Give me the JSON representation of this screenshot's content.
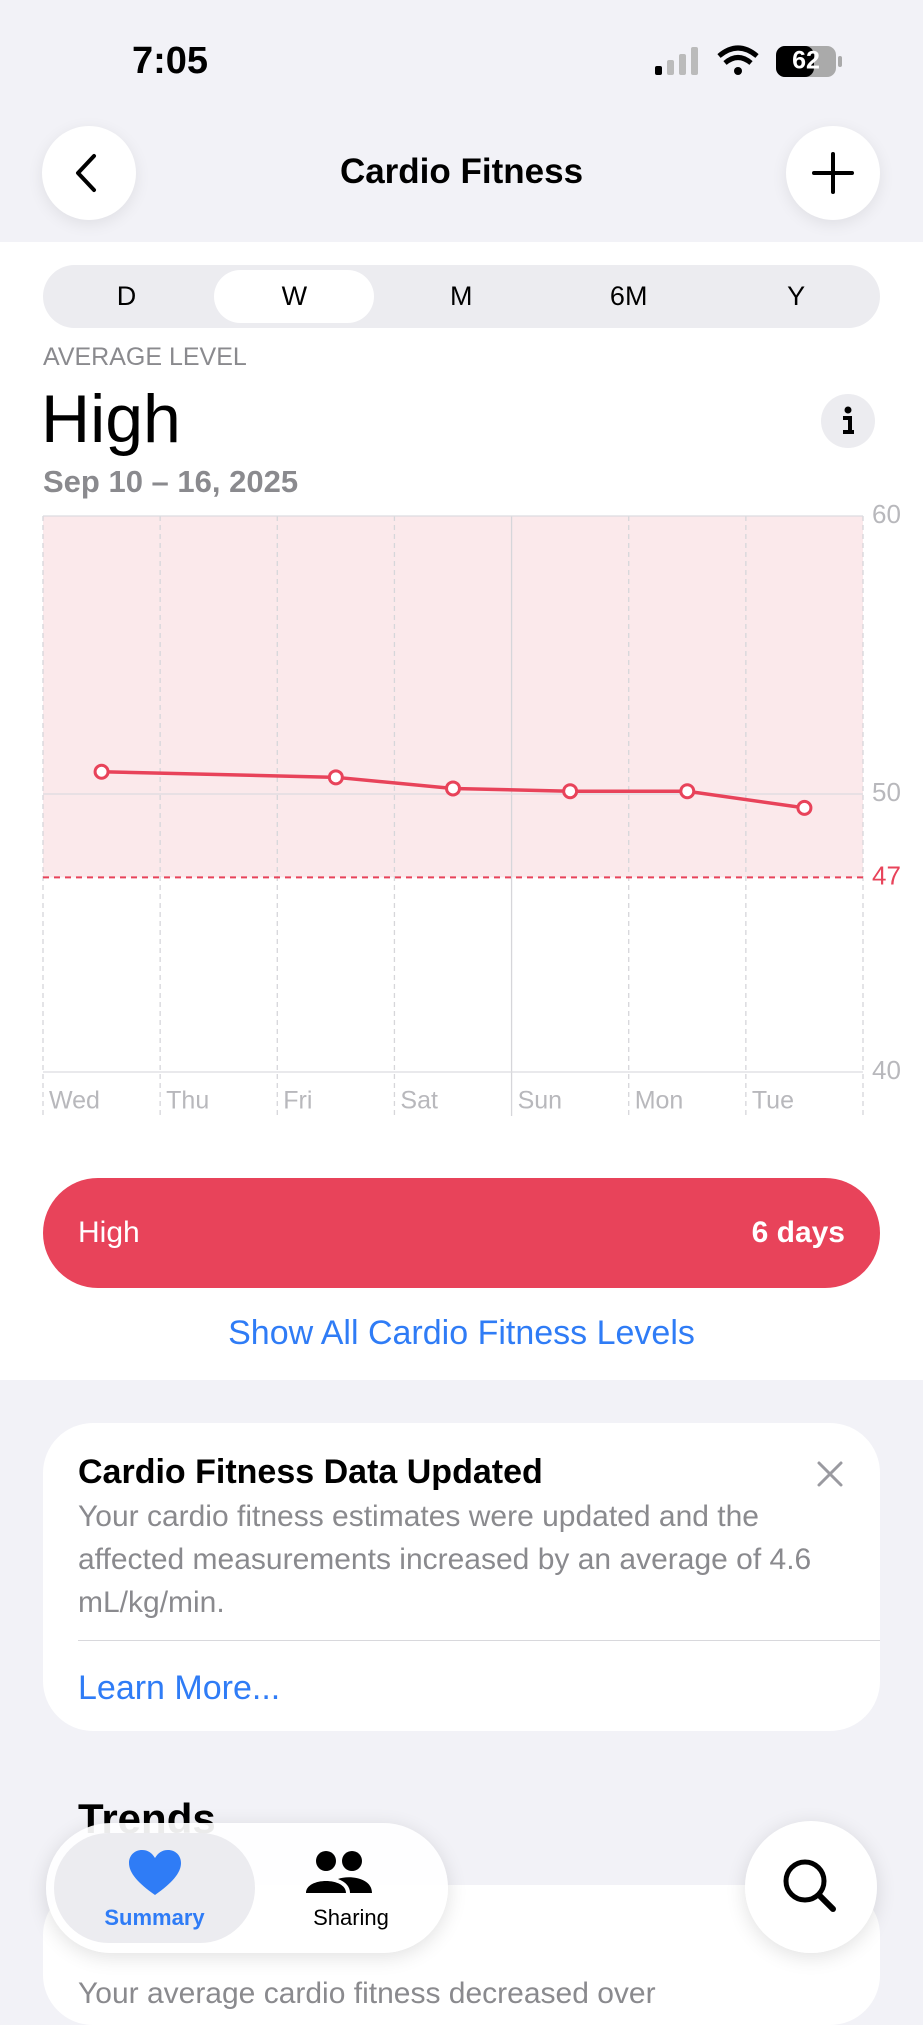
{
  "status_bar": {
    "time": "7:05",
    "battery": "62"
  },
  "header": {
    "title": "Cardio Fitness"
  },
  "segments": {
    "items": [
      "D",
      "W",
      "M",
      "6M",
      "Y"
    ],
    "selected_index": 1
  },
  "summary": {
    "label": "AVERAGE LEVEL",
    "value": "High",
    "date_range": "Sep 10 – 16, 2025"
  },
  "chart_data": {
    "type": "line",
    "categories": [
      "Wed",
      "Thu",
      "Fri",
      "Sat",
      "Sun",
      "Mon",
      "Tue"
    ],
    "series": [
      {
        "x": [
          "Wed",
          "Fri",
          "Sat",
          "Sun",
          "Mon",
          "Tue"
        ],
        "values": [
          50.8,
          50.6,
          50.2,
          50.1,
          50.1,
          49.5
        ],
        "color": "#e8435a"
      }
    ],
    "ylim": [
      40,
      60
    ],
    "yticks": [
      40,
      50,
      60
    ],
    "reference_line": 47,
    "reference_color": "#e8435a",
    "band_color": "#fbe9eb",
    "grid": true
  },
  "level_bar": {
    "label": "High",
    "value": "6 days"
  },
  "show_all_link": "Show All Cardio Fitness Levels",
  "notice": {
    "title": "Cardio Fitness Data Updated",
    "body": "Your cardio fitness estimates were updated and the affected measurements increased by an average of 4.6 mL/kg/min.",
    "link": "Learn More..."
  },
  "trends": {
    "title": "Trends",
    "text": "Your average cardio fitness decreased over"
  },
  "tab_bar": {
    "tabs": [
      "Summary",
      "Sharing"
    ]
  }
}
